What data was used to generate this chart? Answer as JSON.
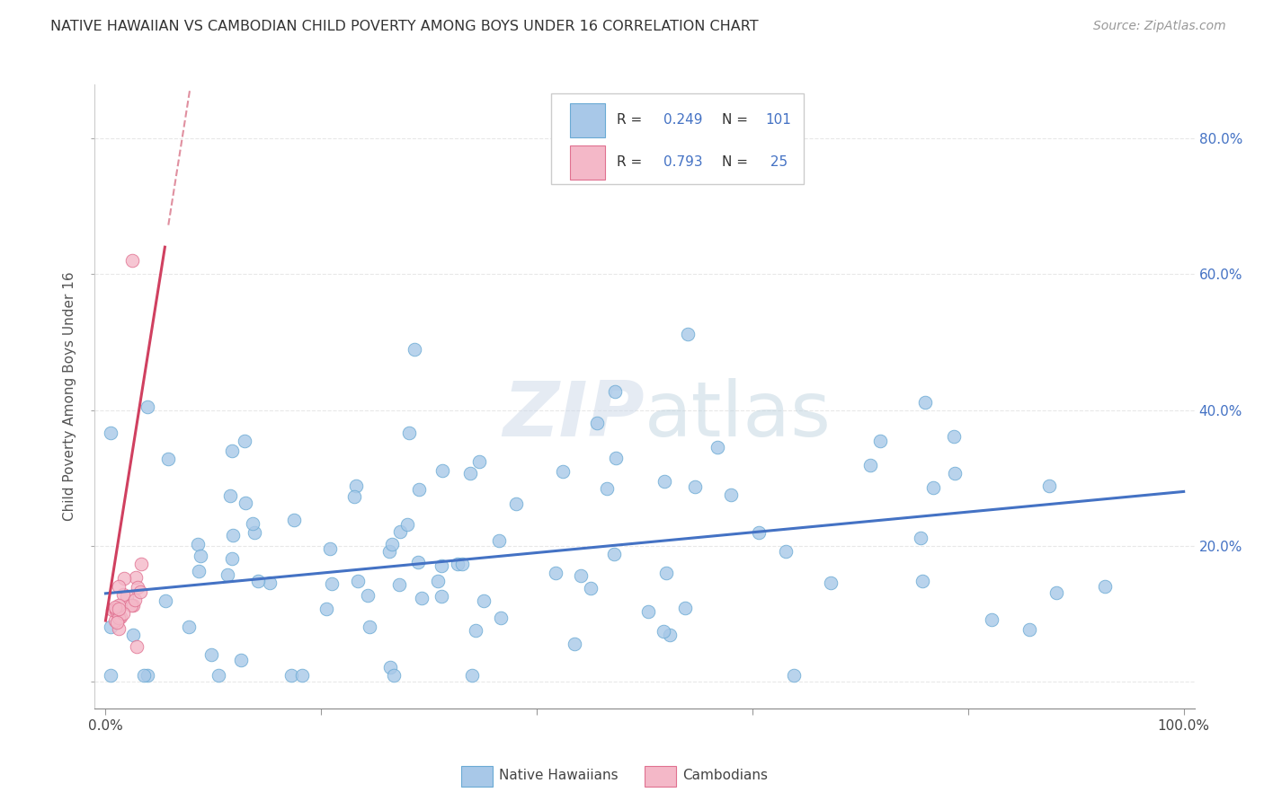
{
  "title": "NATIVE HAWAIIAN VS CAMBODIAN CHILD POVERTY AMONG BOYS UNDER 16 CORRELATION CHART",
  "source": "Source: ZipAtlas.com",
  "ylabel": "Child Poverty Among Boys Under 16",
  "watermark": "ZIPatlas",
  "nh_color": "#a8c8e8",
  "nh_edge_color": "#6aaad4",
  "cam_color": "#f4b8c8",
  "cam_edge_color": "#e07090",
  "nh_line_color": "#4472c4",
  "cam_line_color": "#d04060",
  "cam_dash_color": "#e090a0",
  "legend_text_color": "#4472c4",
  "background_color": "#ffffff",
  "grid_color": "#e8e8e8",
  "right_yticklabels": [
    "20.0%",
    "40.0%",
    "60.0%",
    "80.0%"
  ],
  "xticklabels_left": "0.0%",
  "xticklabels_right": "100.0%",
  "bottom_legend_nh": "Native Hawaiians",
  "bottom_legend_cam": "Cambodians"
}
